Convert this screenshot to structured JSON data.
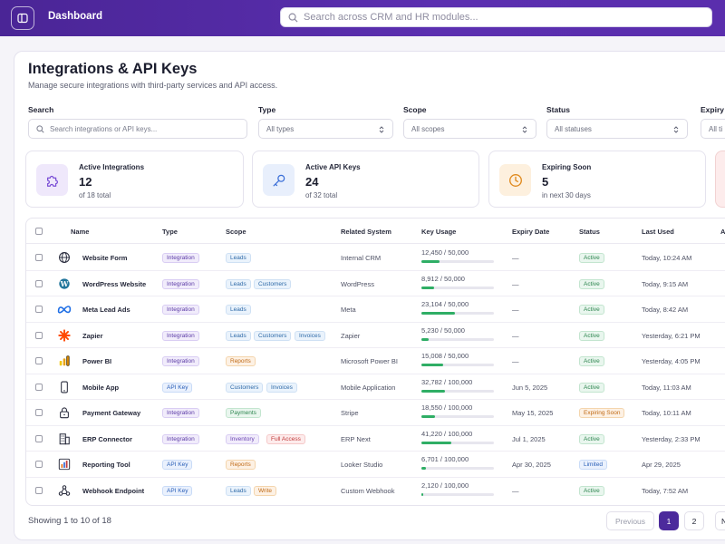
{
  "topbar": {
    "title": "Dashboard",
    "search_placeholder": "Search across CRM and HR modules..."
  },
  "page": {
    "title": "Integrations & API Keys",
    "subtitle": "Manage secure integrations with third-party services and API access."
  },
  "filters": {
    "search": {
      "label": "Search",
      "placeholder": "Search integrations or API keys..."
    },
    "type": {
      "label": "Type",
      "value": "All types"
    },
    "scope": {
      "label": "Scope",
      "value": "All scopes"
    },
    "status": {
      "label": "Status",
      "value": "All statuses"
    },
    "expiry": {
      "label": "Expiry",
      "value": "All ti"
    }
  },
  "stats": [
    {
      "label": "Active Integrations",
      "value": "12",
      "sub": "of 18 total",
      "icon": "puzzle-icon",
      "color": "#7b4fd6"
    },
    {
      "label": "Active API Keys",
      "value": "24",
      "sub": "of 32 total",
      "icon": "key-icon",
      "color": "#3b6fd8"
    },
    {
      "label": "Expiring Soon",
      "value": "5",
      "sub": "in next 30 days",
      "icon": "clock-icon",
      "color": "#e08a1e"
    }
  ],
  "table": {
    "headers": {
      "name": "Name",
      "type": "Type",
      "scope": "Scope",
      "related": "Related System",
      "usage": "Key Usage",
      "expiry": "Expiry Date",
      "status": "Status",
      "last_used": "Last Used",
      "actions": "Ac"
    },
    "rows": [
      {
        "name": "Website Form",
        "icon": "globe-icon",
        "type": "Integration",
        "scopes": [
          "Leads"
        ],
        "related": "Internal CRM",
        "usage": "12,450 / 50,000",
        "usage_fraction": 0.249,
        "expiry": "—",
        "status": "Active",
        "last_used": "Today, 10:24 AM"
      },
      {
        "name": "WordPress Website",
        "icon": "wordpress-icon",
        "type": "Integration",
        "scopes": [
          "Leads",
          "Customers"
        ],
        "related": "WordPress",
        "usage": "8,912 / 50,000",
        "usage_fraction": 0.178,
        "expiry": "—",
        "status": "Active",
        "last_used": "Today, 9:15 AM"
      },
      {
        "name": "Meta Lead Ads",
        "icon": "meta-icon",
        "type": "Integration",
        "scopes": [
          "Leads"
        ],
        "related": "Meta",
        "usage": "23,104 / 50,000",
        "usage_fraction": 0.462,
        "expiry": "—",
        "status": "Active",
        "last_used": "Today, 8:42 AM"
      },
      {
        "name": "Zapier",
        "icon": "zapier-icon",
        "type": "Integration",
        "scopes": [
          "Leads",
          "Customers",
          "Invoices"
        ],
        "related": "Zapier",
        "usage": "5,230 / 50,000",
        "usage_fraction": 0.105,
        "expiry": "—",
        "status": "Active",
        "last_used": "Yesterday, 6:21 PM"
      },
      {
        "name": "Power BI",
        "icon": "powerbi-icon",
        "type": "Integration",
        "scopes": [
          "Reports"
        ],
        "related": "Microsoft Power BI",
        "usage": "15,008 / 50,000",
        "usage_fraction": 0.3,
        "expiry": "—",
        "status": "Active",
        "last_used": "Yesterday, 4:05 PM"
      },
      {
        "name": "Mobile App",
        "icon": "mobile-icon",
        "type": "API Key",
        "scopes": [
          "Customers",
          "Invoices"
        ],
        "related": "Mobile Application",
        "usage": "32,782 / 100,000",
        "usage_fraction": 0.328,
        "expiry": "Jun 5, 2025",
        "status": "Active",
        "last_used": "Today, 11:03 AM"
      },
      {
        "name": "Payment Gateway",
        "icon": "lock-icon",
        "type": "Integration",
        "scopes": [
          "Payments"
        ],
        "related": "Stripe",
        "usage": "18,550 / 100,000",
        "usage_fraction": 0.186,
        "expiry": "May 15, 2025",
        "status": "Expiring Soon",
        "last_used": "Today, 10:11 AM"
      },
      {
        "name": "ERP Connector",
        "icon": "building-icon",
        "type": "Integration",
        "scopes": [
          "Inventory",
          "Full Access"
        ],
        "related": "ERP Next",
        "usage": "41,220 / 100,000",
        "usage_fraction": 0.412,
        "expiry": "Jul 1, 2025",
        "status": "Active",
        "last_used": "Yesterday, 2:33 PM"
      },
      {
        "name": "Reporting Tool",
        "icon": "chart-icon",
        "type": "API Key",
        "scopes": [
          "Reports"
        ],
        "related": "Looker Studio",
        "usage": "6,701 / 100,000",
        "usage_fraction": 0.067,
        "expiry": "Apr 30, 2025",
        "status": "Limited",
        "last_used": "Apr 29, 2025"
      },
      {
        "name": "Webhook Endpoint",
        "icon": "webhook-icon",
        "type": "API Key",
        "scopes": [
          "Leads",
          "Write"
        ],
        "related": "Custom Webhook",
        "usage": "2,120 / 100,000",
        "usage_fraction": 0.021,
        "expiry": "—",
        "status": "Active",
        "last_used": "Today, 7:52 AM"
      }
    ]
  },
  "footer": {
    "showing": "Showing 1 to 10 of 18",
    "prev": "Previous",
    "pages": [
      "1",
      "2"
    ],
    "current_page": "1",
    "next_stub": "N"
  }
}
